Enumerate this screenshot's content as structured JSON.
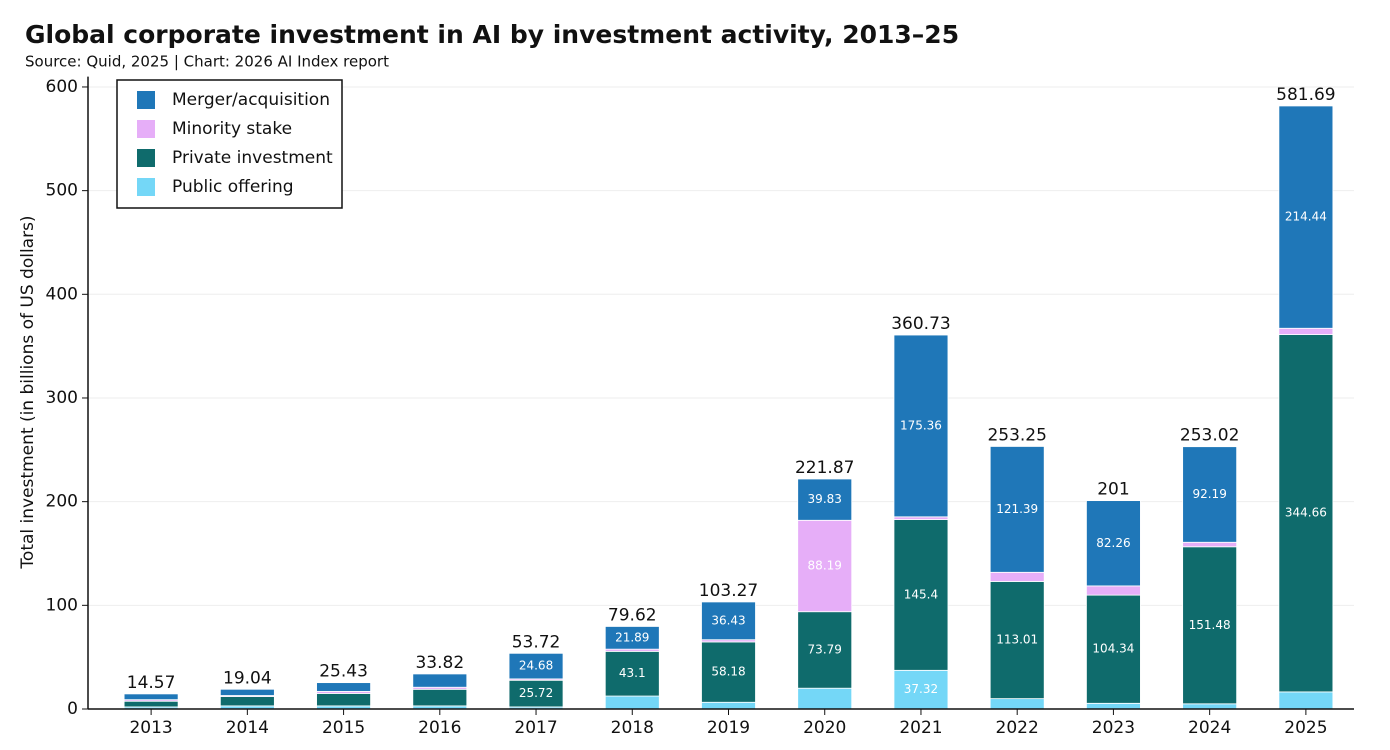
{
  "chart_data": {
    "type": "stacked_bar",
    "title": "Global corporate investment in AI by investment activity, 2013–25",
    "subtitle": "Source: Quid, 2025 | Chart: 2026 AI Index report",
    "y_label": "Total investment (in billions of US dollars)",
    "categories": [
      "2013",
      "2014",
      "2015",
      "2016",
      "2017",
      "2018",
      "2019",
      "2020",
      "2021",
      "2022",
      "2023",
      "2024",
      "2025"
    ],
    "series": [
      {
        "name": "Public offering",
        "color": "#74d7f7",
        "values": [
          2,
          3,
          3,
          3,
          2,
          12.5,
          6.5,
          20.06,
          37.32,
          10,
          5.5,
          5,
          16.5
        ]
      },
      {
        "name": "Private investment",
        "color": "#0f6b6c",
        "values": [
          5.5,
          9,
          12,
          16,
          25.72,
          43.1,
          58.18,
          73.79,
          145.4,
          113.01,
          104.34,
          151.48,
          344.66
        ]
      },
      {
        "name": "Minority stake",
        "color": "#e6aef8",
        "values": [
          1.5,
          1,
          2,
          2,
          1.32,
          2.13,
          2.16,
          88.19,
          2.65,
          8.85,
          8.9,
          4.35,
          6.09
        ]
      },
      {
        "name": "Merger/acquisition",
        "color": "#1f77b8",
        "values": [
          5.57,
          6.04,
          8.43,
          12.82,
          24.68,
          21.89,
          36.43,
          39.83,
          175.36,
          121.39,
          82.26,
          92.19,
          214.44
        ]
      }
    ],
    "totals": [
      14.57,
      19.04,
      25.43,
      33.82,
      53.72,
      79.62,
      103.27,
      221.87,
      360.73,
      253.25,
      201,
      253.02,
      581.69
    ],
    "label_threshold": 21,
    "ylim": [
      0,
      610
    ],
    "yticks": [
      0,
      100,
      200,
      300,
      400,
      500,
      600
    ],
    "grid": true,
    "legend": "upper-left"
  }
}
